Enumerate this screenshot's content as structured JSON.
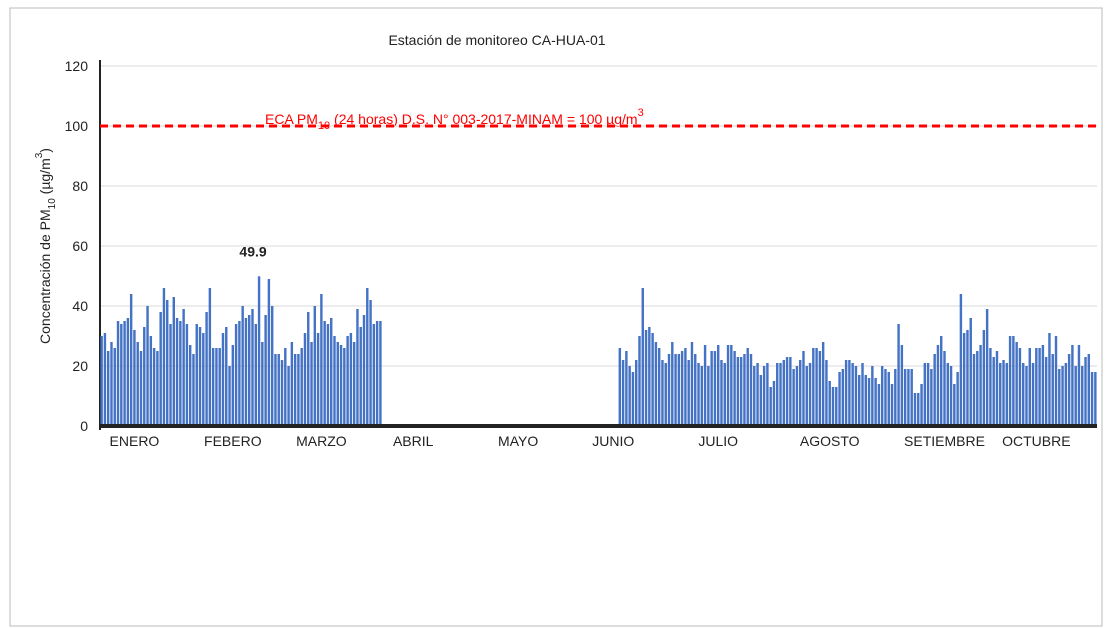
{
  "chart_data": {
    "type": "bar",
    "title": "Estación de monitoreo CA-HUA-01",
    "y_label": [
      "Concentración de PM",
      "10",
      " (µg/m",
      "3",
      ")"
    ],
    "reference_line": 100,
    "reference_color": "#ff0000",
    "reference_label": [
      "ECA PM",
      "10",
      " (24 horas) D.S. N° 003-2017-MINAM = 100 µg/m",
      "3"
    ],
    "color": "#4472c4",
    "ylim": [
      0,
      120
    ],
    "yticks": [
      0,
      20,
      40,
      60,
      80,
      100,
      120
    ],
    "grid": true,
    "categories": [
      null,
      null,
      null,
      null,
      null,
      null,
      null,
      null,
      null,
      null,
      "ENERO",
      null,
      null,
      null,
      null,
      null,
      null,
      null,
      null,
      null,
      null,
      null,
      null,
      null,
      null,
      null,
      null,
      null,
      null,
      null,
      null,
      null,
      null,
      null,
      null,
      null,
      null,
      null,
      null,
      null,
      "FEBERO",
      null,
      null,
      null,
      null,
      null,
      null,
      null,
      null,
      null,
      null,
      null,
      null,
      null,
      null,
      null,
      null,
      null,
      null,
      null,
      null,
      null,
      null,
      null,
      null,
      null,
      null,
      "MARZO",
      null,
      null,
      null,
      null,
      null,
      null,
      null,
      null,
      null,
      null,
      null,
      null,
      null,
      null,
      null,
      null,
      null,
      null,
      null,
      null,
      null,
      null,
      null,
      null,
      null,
      null,
      null,
      "ABRIL",
      null,
      null,
      null,
      null,
      null,
      null,
      null,
      null,
      null,
      null,
      null,
      null,
      null,
      null,
      null,
      null,
      null,
      null,
      null,
      null,
      null,
      null,
      null,
      null,
      null,
      null,
      null,
      null,
      null,
      null,
      null,
      "MAYO",
      null,
      null,
      null,
      null,
      null,
      null,
      null,
      null,
      null,
      null,
      null,
      null,
      null,
      null,
      null,
      null,
      null,
      null,
      null,
      null,
      null,
      null,
      null,
      null,
      null,
      null,
      null,
      null,
      "JUNIO",
      null,
      null,
      null,
      null,
      null,
      null,
      null,
      null,
      null,
      null,
      null,
      null,
      null,
      null,
      null,
      null,
      null,
      null,
      null,
      null,
      null,
      null,
      null,
      null,
      null,
      null,
      null,
      null,
      null,
      null,
      null,
      "JULIO",
      null,
      null,
      null,
      null,
      null,
      null,
      null,
      null,
      null,
      null,
      null,
      null,
      null,
      null,
      null,
      null,
      null,
      null,
      null,
      null,
      null,
      null,
      null,
      null,
      null,
      null,
      null,
      null,
      null,
      null,
      null,
      null,
      null,
      "AGOSTO",
      null,
      null,
      null,
      null,
      null,
      null,
      null,
      null,
      null,
      null,
      null,
      null,
      null,
      null,
      null,
      null,
      null,
      null,
      null,
      null,
      null,
      null,
      null,
      null,
      null,
      null,
      null,
      null,
      null,
      null,
      null,
      null,
      null,
      null,
      "SETIEMBRE",
      null,
      null,
      null,
      null,
      null,
      null,
      null,
      null,
      null,
      null,
      null,
      null,
      null,
      null,
      null,
      null,
      null,
      null,
      null,
      null,
      null,
      null,
      null,
      null,
      null,
      null,
      null,
      "OCTUBRE",
      null,
      null,
      null,
      null,
      null,
      null,
      null,
      null,
      null,
      null,
      null,
      null,
      null,
      null,
      null,
      null,
      null,
      null
    ],
    "values": [
      30,
      31,
      25,
      28,
      26,
      35,
      34,
      35,
      36,
      44,
      32,
      28,
      25,
      33,
      40,
      30,
      26,
      25,
      38,
      46,
      42,
      34,
      43,
      36,
      35,
      39,
      34,
      27,
      24,
      34,
      33,
      31,
      38,
      46,
      26,
      26,
      26,
      31,
      33,
      20,
      27,
      34,
      35,
      40,
      36,
      37,
      39,
      34,
      49.9,
      28,
      37,
      49,
      40,
      24,
      24,
      22,
      26,
      20,
      28,
      24,
      24,
      26,
      31,
      38,
      28,
      40,
      31,
      44,
      35,
      34,
      36,
      30,
      28,
      27,
      26,
      30,
      31,
      28,
      39,
      33,
      37,
      46,
      42,
      34,
      35,
      35,
      null,
      null,
      null,
      null,
      null,
      null,
      null,
      null,
      null,
      null,
      null,
      null,
      null,
      null,
      null,
      null,
      null,
      null,
      null,
      null,
      null,
      null,
      null,
      null,
      null,
      null,
      null,
      null,
      null,
      null,
      null,
      null,
      null,
      null,
      null,
      null,
      null,
      null,
      null,
      null,
      null,
      null,
      null,
      null,
      null,
      null,
      null,
      null,
      null,
      null,
      null,
      null,
      null,
      null,
      null,
      null,
      null,
      null,
      null,
      null,
      null,
      null,
      null,
      null,
      null,
      null,
      null,
      null,
      null,
      null,
      null,
      null,
      26,
      22,
      25,
      20,
      18,
      22,
      30,
      46,
      32,
      33,
      31,
      28,
      26,
      22,
      21,
      24,
      28,
      24,
      24,
      25,
      26,
      22,
      28,
      24,
      21,
      20,
      27,
      20,
      25,
      25,
      27,
      22,
      21,
      27,
      27,
      25,
      23,
      23,
      24,
      26,
      24,
      20,
      21,
      17,
      20,
      21,
      13,
      15,
      21,
      21,
      22,
      23,
      23,
      19,
      20,
      22,
      25,
      20,
      21,
      26,
      26,
      25,
      28,
      22,
      15,
      13,
      13,
      18,
      19,
      22,
      22,
      21,
      20,
      17,
      21,
      17,
      16,
      20,
      16,
      14,
      20,
      19,
      18,
      14,
      19,
      34,
      27,
      19,
      19,
      19,
      11,
      11,
      14,
      21,
      21,
      19,
      24,
      27,
      30,
      25,
      21,
      20,
      14,
      18,
      44,
      31,
      32,
      36,
      24,
      25,
      27,
      32,
      39,
      26,
      23,
      25,
      21,
      22,
      21,
      30,
      30,
      28,
      26,
      21,
      20,
      26,
      21,
      26,
      26,
      27,
      23,
      31,
      24,
      30,
      19,
      20,
      21,
      24,
      27,
      20,
      27,
      20,
      23,
      24,
      18,
      18
    ]
  }
}
